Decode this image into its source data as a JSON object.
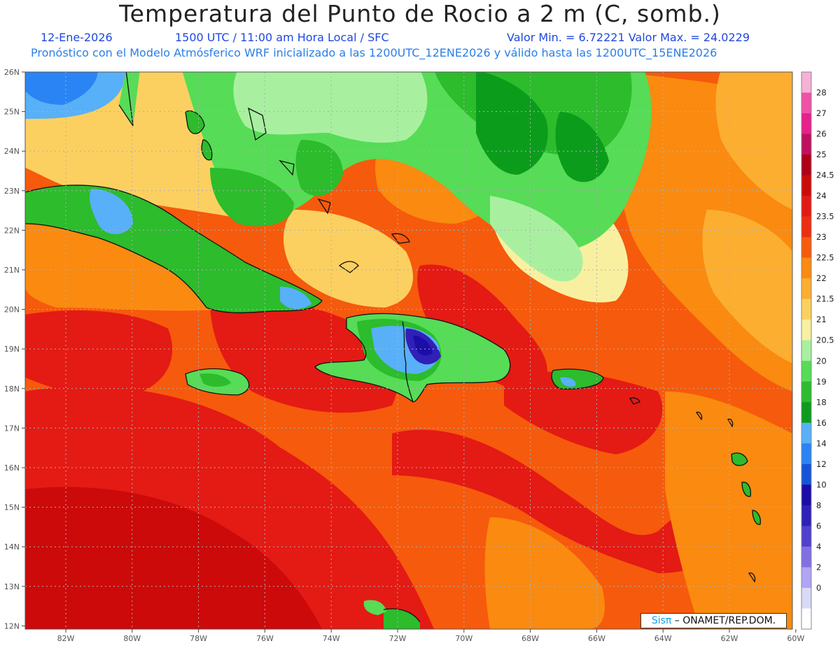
{
  "title": "Temperatura del Punto de Rocio a 2 m (C, somb.)",
  "date": "12-Ene-2026",
  "time_info": "1500 UTC / 11:00 am Hora Local / SFC",
  "stats": "Valor Min. = 6.72221  Valor Max. = 24.0229",
  "forecast_info": "Pronóstico con el Modelo Atmósferico WRF inicializado a las 1200UTC_12ENE2026 y válido hasta las  1200UTC_15ENE2026",
  "credit": {
    "brand": "Sisπ",
    "text": " – ONAMET/REP.DOM."
  },
  "lat_labels": [
    "26N",
    "25N",
    "24N",
    "23N",
    "22N",
    "21N",
    "20N",
    "19N",
    "18N",
    "17N",
    "16N",
    "15N",
    "14N",
    "13N",
    "12N"
  ],
  "lon_labels": [
    "82W",
    "80W",
    "78W",
    "76W",
    "74W",
    "72W",
    "70W",
    "68W",
    "66W",
    "64W",
    "62W",
    "60W"
  ],
  "colorbar": {
    "levels": [
      "28",
      "27",
      "26",
      "25",
      "24.5",
      "24",
      "23.5",
      "23",
      "22.5",
      "22",
      "21.5",
      "21",
      "20.5",
      "20",
      "19",
      "18",
      "16",
      "14",
      "12",
      "10",
      "8",
      "6",
      "4",
      "2",
      "0"
    ],
    "colors": [
      "#f7b0d6",
      "#f050a8",
      "#e8208c",
      "#c01060",
      "#b00018",
      "#cc0a0a",
      "#e41a14",
      "#ee2e10",
      "#f65a0c",
      "#fa8a10",
      "#fcae30",
      "#fcd060",
      "#f8f0a0",
      "#a8f0a0",
      "#56dc56",
      "#2cbc2c",
      "#0c9c1c",
      "#58b0f8",
      "#2a84f4",
      "#1454d8",
      "#1c0ca8",
      "#3020b8",
      "#5040cc",
      "#8070e4",
      "#b0a4f4",
      "#d8d8f8",
      "#ffffff"
    ]
  }
}
